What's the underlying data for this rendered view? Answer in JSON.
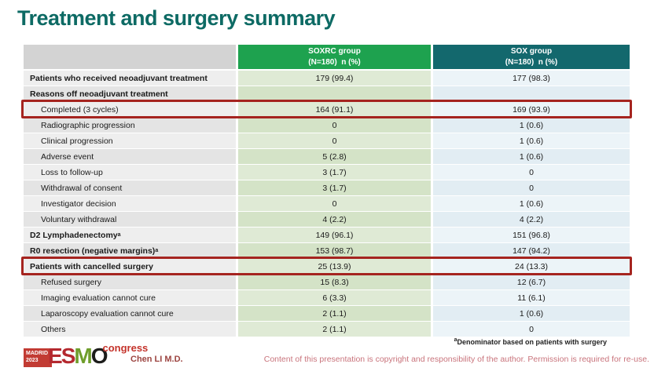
{
  "title": "Treatment and surgery summary",
  "colors": {
    "title_color": "#0d6a64",
    "accent_green": "#1ea24f",
    "accent_teal": "#13686d",
    "highlight_red": "#a5241f",
    "author_color": "#9c4440",
    "copyright_color": "#c9747c"
  },
  "table": {
    "header": {
      "group1_name": "SOXRC group",
      "group1_sub": "(N=180)  n (%)",
      "group2_name": "SOX group",
      "group2_sub": "(N=180)  n (%)"
    },
    "rows": [
      {
        "label": "Patients who received neoadjuvant treatment",
        "bold": true,
        "indent": false,
        "soxrc": "179 (99.4)",
        "sox": "177 (98.3)",
        "highlight": false
      },
      {
        "label": "Reasons off neoadjuvant treatment",
        "bold": true,
        "indent": false,
        "soxrc": "",
        "sox": "",
        "highlight": false
      },
      {
        "label": "Completed (3 cycles)",
        "bold": false,
        "indent": true,
        "soxrc": "164 (91.1)",
        "sox": "169 (93.9)",
        "highlight": true
      },
      {
        "label": "Radiographic progression",
        "bold": false,
        "indent": true,
        "soxrc": "0",
        "sox": "1 (0.6)",
        "highlight": false
      },
      {
        "label": "Clinical progression",
        "bold": false,
        "indent": true,
        "soxrc": "0",
        "sox": "1 (0.6)",
        "highlight": false
      },
      {
        "label": "Adverse event",
        "bold": false,
        "indent": true,
        "soxrc": "5 (2.8)",
        "sox": "1 (0.6)",
        "highlight": false
      },
      {
        "label": "Loss to follow-up",
        "bold": false,
        "indent": true,
        "soxrc": "3 (1.7)",
        "sox": "0",
        "highlight": false
      },
      {
        "label": "Withdrawal of consent",
        "bold": false,
        "indent": true,
        "soxrc": "3 (1.7)",
        "sox": "0",
        "highlight": false
      },
      {
        "label": "Investigator decision",
        "bold": false,
        "indent": true,
        "soxrc": "0",
        "sox": "1 (0.6)",
        "highlight": false
      },
      {
        "label": "Voluntary withdrawal",
        "bold": false,
        "indent": true,
        "soxrc": "4 (2.2)",
        "sox": "4 (2.2)",
        "highlight": false
      },
      {
        "label": "D2 Lymphadenectomy",
        "sup": "a",
        "bold": true,
        "indent": false,
        "soxrc": "149 (96.1)",
        "sox": "151 (96.8)",
        "highlight": false
      },
      {
        "label": "R0 resection (negative margins)",
        "sup": "a",
        "bold": true,
        "indent": false,
        "soxrc": "153 (98.7)",
        "sox": "147 (94.2)",
        "highlight": false
      },
      {
        "label": "Patients with cancelled surgery",
        "bold": true,
        "indent": false,
        "soxrc": "25 (13.9)",
        "sox": "24 (13.3)",
        "highlight": true
      },
      {
        "label": "Refused surgery",
        "bold": false,
        "indent": true,
        "soxrc": "15 (8.3)",
        "sox": "12 (6.7)",
        "highlight": false
      },
      {
        "label": "Imaging evaluation cannot cure",
        "bold": false,
        "indent": true,
        "soxrc": "6 (3.3)",
        "sox": "11 (6.1)",
        "highlight": false
      },
      {
        "label": "Laparoscopy evaluation cannot cure",
        "bold": false,
        "indent": true,
        "soxrc": "2 (1.1)",
        "sox": "1 (0.6)",
        "highlight": false
      },
      {
        "label": "Others",
        "bold": false,
        "indent": true,
        "soxrc": "2 (1.1)",
        "sox": "0",
        "highlight": false
      }
    ]
  },
  "footer": {
    "footnote_sup": "a",
    "footnote_text": "Denominator based on patients with surgery",
    "author": "Chen LI M.D.",
    "copyright": "Content of this presentation is copyright and responsibility of the author. Permission is required for re-use.",
    "logo": {
      "madrid": "MADRID",
      "year": "2023",
      "congress": "congress",
      "letters": [
        {
          "ch": "E",
          "color": "#b4292f"
        },
        {
          "ch": "S",
          "color": "#b4292f"
        },
        {
          "ch": "M",
          "color": "#6f9e2c"
        },
        {
          "ch": "O",
          "color": "#1d1d1b"
        }
      ]
    }
  }
}
